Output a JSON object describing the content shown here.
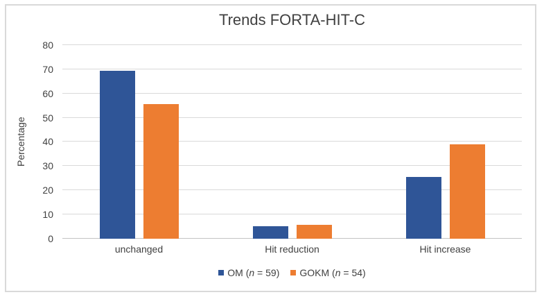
{
  "window": {
    "background_color": "#ffffff",
    "frame_border_color": "#d9d9d9"
  },
  "chart_data": {
    "type": "bar",
    "title": "Trends FORTA-HIT-C",
    "xlabel": "",
    "ylabel": "Percentage",
    "categories": [
      "unchanged",
      "Hit reduction",
      "Hit increase"
    ],
    "series": [
      {
        "name": "OM",
        "legend_before": "OM (",
        "legend_italic": "n",
        "legend_after": " = 59)",
        "color": "#2F5597",
        "values": [
          69.5,
          5.1,
          25.4
        ]
      },
      {
        "name": "GOKM",
        "legend_before": "GOKM (",
        "legend_italic": "n",
        "legend_after": " = 54)",
        "color": "#ED7D31",
        "values": [
          55.6,
          5.6,
          38.9
        ]
      }
    ],
    "ylim": [
      0,
      80
    ],
    "yticks": [
      0,
      10,
      20,
      30,
      40,
      50,
      60,
      70,
      80
    ],
    "grid": true,
    "legend_position": "bottom",
    "gridline_color": "#d9d9d9",
    "axis_line_color": "#c3c3c3",
    "text_color": "#404040"
  }
}
